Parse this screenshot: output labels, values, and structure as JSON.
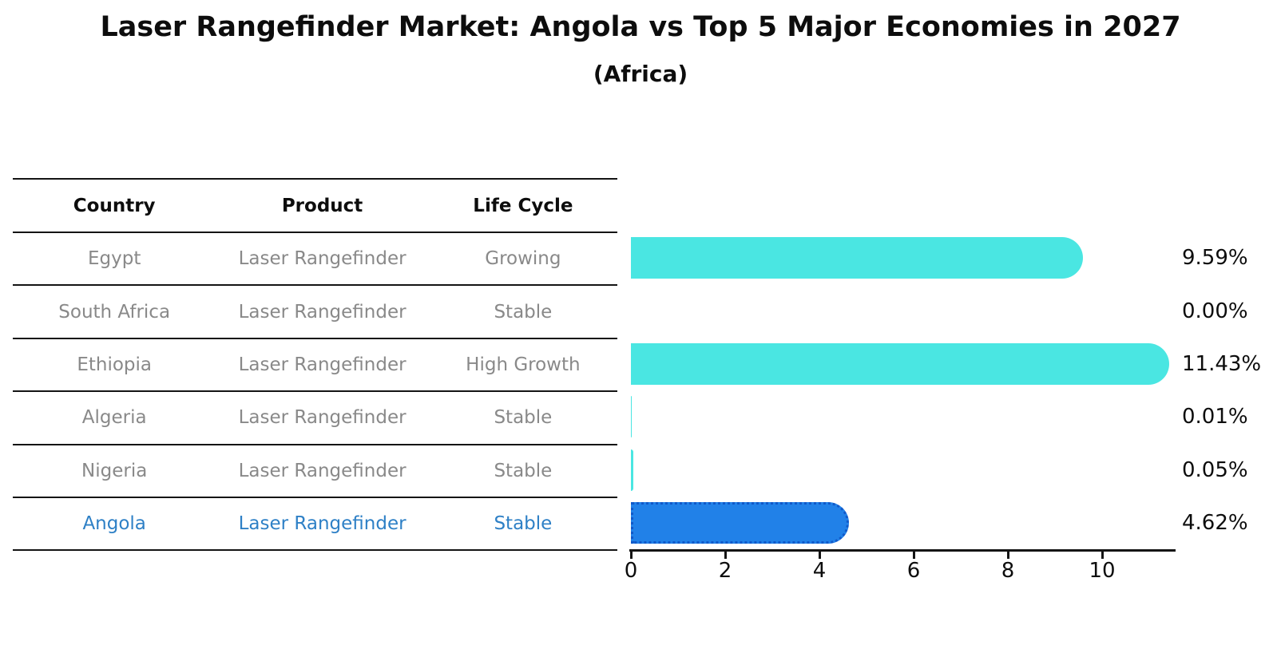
{
  "title": "Laser Rangefinder Market: Angola vs Top 5 Major Economies in 2027",
  "subtitle": "(Africa)",
  "table": {
    "headers": [
      "Country",
      "Product",
      "Life Cycle"
    ],
    "rows": [
      {
        "country": "Egypt",
        "product": "Laser Rangefinder",
        "life_cycle": "Growing",
        "highlighted": false
      },
      {
        "country": "South Africa",
        "product": "Laser Rangefinder",
        "life_cycle": "Stable",
        "highlighted": false
      },
      {
        "country": "Ethiopia",
        "product": "Laser Rangefinder",
        "life_cycle": "High Growth",
        "highlighted": false
      },
      {
        "country": "Algeria",
        "product": "Laser Rangefinder",
        "life_cycle": "Stable",
        "highlighted": false
      },
      {
        "country": "Nigeria",
        "product": "Laser Rangefinder",
        "life_cycle": "Stable",
        "highlighted": false
      },
      {
        "country": "Angola",
        "product": "Laser Rangefinder",
        "life_cycle": "Stable",
        "highlighted": true
      }
    ]
  },
  "chart_data": {
    "type": "bar",
    "orientation": "horizontal",
    "categories": [
      "Egypt",
      "South Africa",
      "Ethiopia",
      "Algeria",
      "Nigeria",
      "Angola"
    ],
    "values": [
      9.59,
      0.0,
      11.43,
      0.01,
      0.05,
      4.62
    ],
    "value_labels": [
      "9.59%",
      "0.00%",
      "11.43%",
      "0.01%",
      "0.05%",
      "4.62%"
    ],
    "xticks": [
      "0",
      "2",
      "4",
      "6",
      "8",
      "10"
    ],
    "xtick_values": [
      0,
      2,
      4,
      6,
      8,
      10
    ],
    "xlim": [
      0,
      11.55
    ],
    "grid": false,
    "legend": false,
    "highlight_index": 5
  },
  "colors": {
    "bar_default": "#4AE6E2",
    "bar_highlight": "#2181E8",
    "bar_highlight_border": "#1059C9",
    "highlight_text": "#2E80C6",
    "cell_text": "#898989",
    "line": "#141414"
  }
}
